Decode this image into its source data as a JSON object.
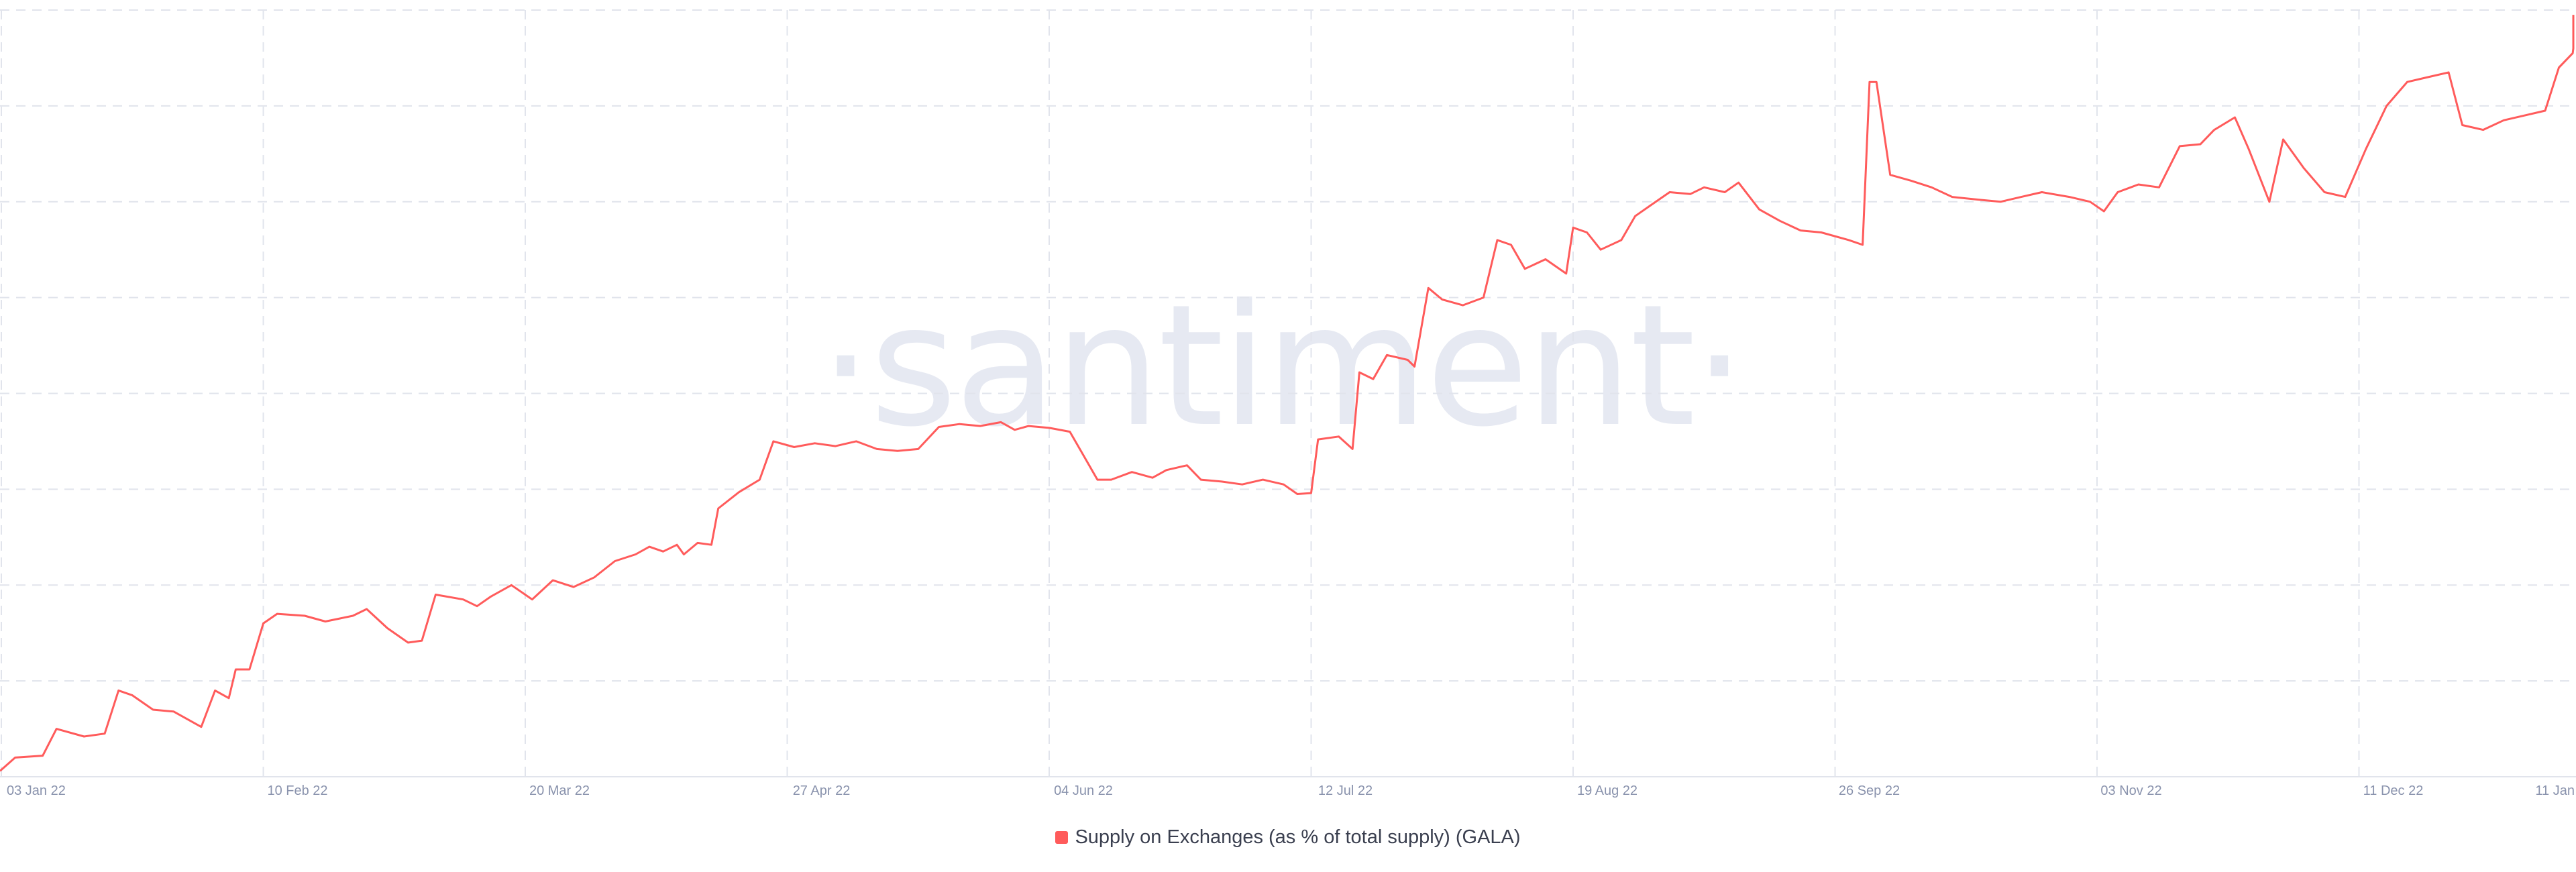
{
  "watermark": "·santiment·",
  "legend": {
    "label": "Supply on Exchanges (as % of total supply) (GALA)"
  },
  "colors": {
    "series": "#ff5b5b",
    "grid": "#e1e4ec",
    "tick": "#8a93ad",
    "watermark": "#e6e9f2"
  },
  "chart_data": {
    "type": "line",
    "title": "",
    "xlabel": "",
    "ylabel": "",
    "y_tick_labels_shown": false,
    "grid": true,
    "legend_position": "bottom-center",
    "x_ticks": [
      "03 Jan 22",
      "10 Feb 22",
      "20 Mar 22",
      "27 Apr 22",
      "04 Jun 22",
      "12 Jul 22",
      "19 Aug 22",
      "26 Sep 22",
      "03 Nov 22",
      "11 Dec 22",
      "11 Jan"
    ],
    "ylim": [
      0,
      8
    ],
    "series": [
      {
        "name": "Supply on Exchanges (as % of total supply) (GALA)",
        "color": "#ff5b5b",
        "points": [
          [
            "2022-01-01",
            0.06
          ],
          [
            "2022-01-05",
            0.2
          ],
          [
            "2022-01-09",
            0.22
          ],
          [
            "2022-01-11",
            0.5
          ],
          [
            "2022-01-15",
            0.42
          ],
          [
            "2022-01-18",
            0.45
          ],
          [
            "2022-01-20",
            0.9
          ],
          [
            "2022-01-22",
            0.85
          ],
          [
            "2022-01-25",
            0.7
          ],
          [
            "2022-01-28",
            0.68
          ],
          [
            "2022-02-01",
            0.52
          ],
          [
            "2022-02-03",
            0.9
          ],
          [
            "2022-02-05",
            0.82
          ],
          [
            "2022-02-06",
            1.12
          ],
          [
            "2022-02-08",
            1.12
          ],
          [
            "2022-02-10",
            1.6
          ],
          [
            "2022-02-12",
            1.7
          ],
          [
            "2022-02-16",
            1.68
          ],
          [
            "2022-02-19",
            1.62
          ],
          [
            "2022-02-23",
            1.68
          ],
          [
            "2022-02-25",
            1.75
          ],
          [
            "2022-02-28",
            1.55
          ],
          [
            "2022-03-03",
            1.4
          ],
          [
            "2022-03-05",
            1.42
          ],
          [
            "2022-03-07",
            1.9
          ],
          [
            "2022-03-11",
            1.85
          ],
          [
            "2022-03-13",
            1.78
          ],
          [
            "2022-03-15",
            1.88
          ],
          [
            "2022-03-18",
            2.0
          ],
          [
            "2022-03-21",
            1.85
          ],
          [
            "2022-03-24",
            2.05
          ],
          [
            "2022-03-27",
            1.98
          ],
          [
            "2022-03-30",
            2.08
          ],
          [
            "2022-04-02",
            2.25
          ],
          [
            "2022-04-05",
            2.32
          ],
          [
            "2022-04-07",
            2.4
          ],
          [
            "2022-04-09",
            2.35
          ],
          [
            "2022-04-11",
            2.42
          ],
          [
            "2022-04-12",
            2.32
          ],
          [
            "2022-04-14",
            2.44
          ],
          [
            "2022-04-16",
            2.42
          ],
          [
            "2022-04-17",
            2.8
          ],
          [
            "2022-04-20",
            2.97
          ],
          [
            "2022-04-23",
            3.1
          ],
          [
            "2022-04-25",
            3.5
          ],
          [
            "2022-04-28",
            3.44
          ],
          [
            "2022-05-01",
            3.48
          ],
          [
            "2022-05-04",
            3.45
          ],
          [
            "2022-05-07",
            3.5
          ],
          [
            "2022-05-10",
            3.42
          ],
          [
            "2022-05-13",
            3.4
          ],
          [
            "2022-05-16",
            3.42
          ],
          [
            "2022-05-19",
            3.65
          ],
          [
            "2022-05-22",
            3.68
          ],
          [
            "2022-05-25",
            3.66
          ],
          [
            "2022-05-28",
            3.7
          ],
          [
            "2022-05-30",
            3.62
          ],
          [
            "2022-06-01",
            3.66
          ],
          [
            "2022-06-04",
            3.64
          ],
          [
            "2022-06-07",
            3.6
          ],
          [
            "2022-06-09",
            3.35
          ],
          [
            "2022-06-11",
            3.1
          ],
          [
            "2022-06-13",
            3.1
          ],
          [
            "2022-06-16",
            3.18
          ],
          [
            "2022-06-19",
            3.12
          ],
          [
            "2022-06-21",
            3.2
          ],
          [
            "2022-06-24",
            3.25
          ],
          [
            "2022-06-26",
            3.1
          ],
          [
            "2022-06-29",
            3.08
          ],
          [
            "2022-07-02",
            3.05
          ],
          [
            "2022-07-05",
            3.1
          ],
          [
            "2022-07-08",
            3.05
          ],
          [
            "2022-07-10",
            2.95
          ],
          [
            "2022-07-12",
            2.96
          ],
          [
            "2022-07-13",
            3.52
          ],
          [
            "2022-07-16",
            3.55
          ],
          [
            "2022-07-18",
            3.42
          ],
          [
            "2022-07-19",
            4.22
          ],
          [
            "2022-07-21",
            4.15
          ],
          [
            "2022-07-23",
            4.4
          ],
          [
            "2022-07-26",
            4.35
          ],
          [
            "2022-07-27",
            4.28
          ],
          [
            "2022-07-29",
            5.1
          ],
          [
            "2022-07-31",
            4.98
          ],
          [
            "2022-08-03",
            4.92
          ],
          [
            "2022-08-06",
            5.0
          ],
          [
            "2022-08-08",
            5.6
          ],
          [
            "2022-08-10",
            5.55
          ],
          [
            "2022-08-12",
            5.3
          ],
          [
            "2022-08-15",
            5.4
          ],
          [
            "2022-08-18",
            5.25
          ],
          [
            "2022-08-19",
            5.73
          ],
          [
            "2022-08-21",
            5.68
          ],
          [
            "2022-08-23",
            5.5
          ],
          [
            "2022-08-26",
            5.6
          ],
          [
            "2022-08-28",
            5.85
          ],
          [
            "2022-08-30",
            5.95
          ],
          [
            "2022-09-02",
            6.1
          ],
          [
            "2022-09-05",
            6.08
          ],
          [
            "2022-09-07",
            6.15
          ],
          [
            "2022-09-10",
            6.1
          ],
          [
            "2022-09-12",
            6.2
          ],
          [
            "2022-09-15",
            5.92
          ],
          [
            "2022-09-18",
            5.8
          ],
          [
            "2022-09-21",
            5.7
          ],
          [
            "2022-09-24",
            5.68
          ],
          [
            "2022-09-28",
            5.6
          ],
          [
            "2022-09-30",
            5.55
          ],
          [
            "2022-10-01",
            7.25
          ],
          [
            "2022-10-02",
            7.25
          ],
          [
            "2022-10-04",
            6.28
          ],
          [
            "2022-10-07",
            6.22
          ],
          [
            "2022-10-10",
            6.15
          ],
          [
            "2022-10-13",
            6.05
          ],
          [
            "2022-10-17",
            6.02
          ],
          [
            "2022-10-20",
            6.0
          ],
          [
            "2022-10-23",
            6.05
          ],
          [
            "2022-10-26",
            6.1
          ],
          [
            "2022-10-30",
            6.05
          ],
          [
            "2022-11-02",
            6.0
          ],
          [
            "2022-11-04",
            5.9
          ],
          [
            "2022-11-06",
            6.1
          ],
          [
            "2022-11-09",
            6.18
          ],
          [
            "2022-11-12",
            6.15
          ],
          [
            "2022-11-15",
            6.58
          ],
          [
            "2022-11-18",
            6.6
          ],
          [
            "2022-11-20",
            6.75
          ],
          [
            "2022-11-23",
            6.88
          ],
          [
            "2022-11-25",
            6.55
          ],
          [
            "2022-11-28",
            6.0
          ],
          [
            "2022-11-30",
            6.65
          ],
          [
            "2022-12-03",
            6.35
          ],
          [
            "2022-12-06",
            6.1
          ],
          [
            "2022-12-09",
            6.05
          ],
          [
            "2022-12-12",
            6.55
          ],
          [
            "2022-12-15",
            7.0
          ],
          [
            "2022-12-18",
            7.25
          ],
          [
            "2022-12-21",
            7.3
          ],
          [
            "2022-12-24",
            7.35
          ],
          [
            "2022-12-26",
            6.8
          ],
          [
            "2022-12-29",
            6.75
          ],
          [
            "2023-01-01",
            6.85
          ],
          [
            "2023-01-04",
            6.9
          ],
          [
            "2023-01-07",
            6.95
          ],
          [
            "2023-01-09",
            7.4
          ],
          [
            "2023-01-11",
            7.55
          ],
          [
            "2023-01-13",
            7.6
          ],
          [
            "2023-01-15",
            7.9
          ],
          [
            "2023-01-17",
            7.95
          ]
        ]
      }
    ]
  }
}
